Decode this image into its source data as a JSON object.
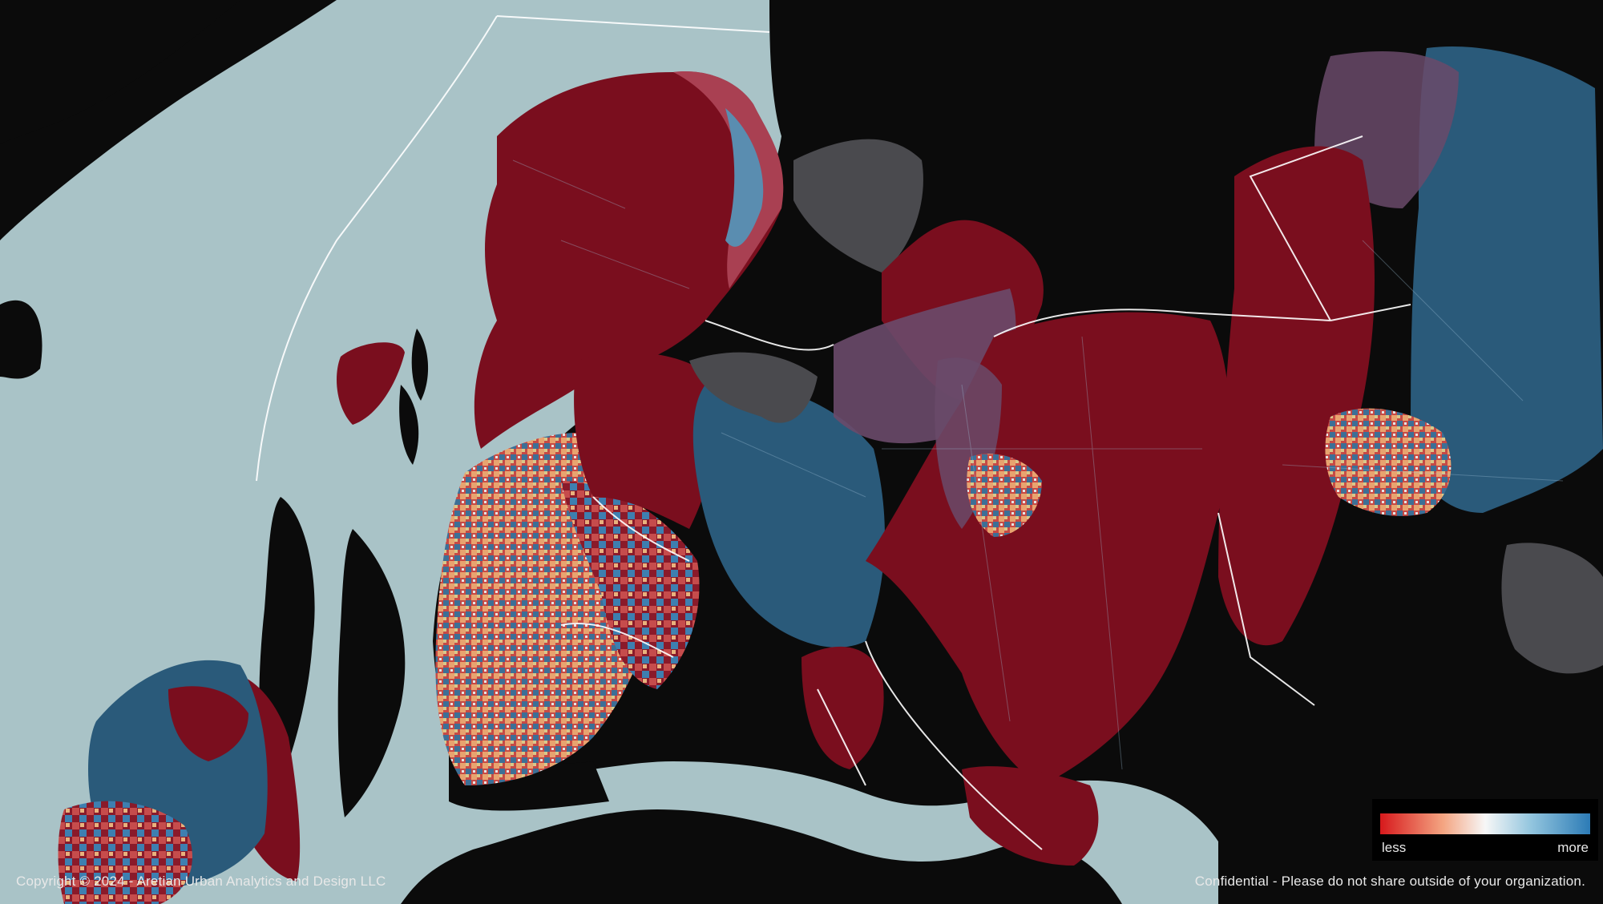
{
  "footer": {
    "copyright": "Copyright © 2024 - Aretian Urban Analytics and Design LLC",
    "confidential": "Confidential - Please do not share outside of your organization."
  },
  "legend": {
    "less_label": "less",
    "more_label": "more",
    "gradient_colors": [
      "#d7191c",
      "#f4a582",
      "#f7f7f7",
      "#92c5de",
      "#2c7bb6"
    ]
  },
  "colors": {
    "background": "#0a0a0a",
    "water": "#a9c3c7",
    "region_less": "#7a0e1e",
    "region_more": "#2a5a7a",
    "region_neutral": "#4a4a4e",
    "boundary": "#ffffff"
  }
}
